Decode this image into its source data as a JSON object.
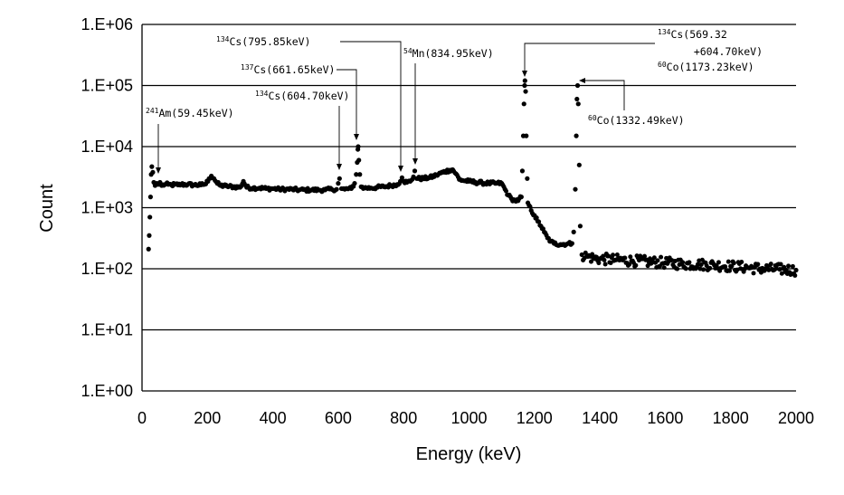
{
  "chart_data": {
    "type": "scatter",
    "title": "",
    "xlabel": "Energy (keV)",
    "ylabel": "Count",
    "xlim": [
      0,
      2000
    ],
    "ylim": [
      1,
      1000000
    ],
    "yscale": "log",
    "grid": "horizontal major gridlines",
    "legend": "none",
    "marker_color": "#000000",
    "x_ticks": [
      "0",
      "200",
      "400",
      "600",
      "800",
      "1000",
      "1200",
      "1400",
      "1600",
      "1800",
      "2000"
    ],
    "y_ticks": [
      "1.E+00",
      "1.E+01",
      "1.E+02",
      "1.E+03",
      "1.E+04",
      "1.E+05",
      "1.E+06"
    ],
    "series": [
      {
        "points": [
          [
            20,
            210
          ],
          [
            22,
            350
          ],
          [
            24,
            700
          ],
          [
            26,
            1500
          ],
          [
            28,
            3500
          ],
          [
            30,
            4700
          ],
          [
            33,
            3800
          ],
          [
            36,
            2600
          ],
          [
            40,
            2300
          ],
          [
            45,
            2500
          ],
          [
            50,
            2400
          ],
          [
            55,
            2600
          ],
          [
            60,
            2300
          ],
          [
            70,
            2400
          ],
          [
            80,
            2400
          ],
          [
            90,
            2350
          ],
          [
            100,
            2400
          ],
          [
            110,
            2350
          ],
          [
            120,
            2400
          ],
          [
            140,
            2400
          ],
          [
            160,
            2350
          ],
          [
            180,
            2350
          ],
          [
            195,
            2450
          ],
          [
            205,
            3000
          ],
          [
            212,
            3300
          ],
          [
            220,
            3000
          ],
          [
            230,
            2500
          ],
          [
            240,
            2300
          ],
          [
            260,
            2250
          ],
          [
            280,
            2200
          ],
          [
            300,
            2150
          ],
          [
            310,
            2700
          ],
          [
            320,
            2150
          ],
          [
            340,
            2100
          ],
          [
            360,
            2100
          ],
          [
            380,
            2050
          ],
          [
            400,
            2050
          ],
          [
            420,
            2000
          ],
          [
            440,
            2000
          ],
          [
            460,
            2000
          ],
          [
            480,
            1950
          ],
          [
            500,
            1950
          ],
          [
            520,
            1950
          ],
          [
            540,
            1950
          ],
          [
            560,
            1950
          ],
          [
            580,
            2000
          ],
          [
            595,
            2000
          ],
          [
            600,
            2500
          ],
          [
            604,
            3000
          ],
          [
            610,
            2050
          ],
          [
            620,
            2000
          ],
          [
            640,
            2050
          ],
          [
            650,
            2500
          ],
          [
            655,
            3500
          ],
          [
            658,
            5500
          ],
          [
            660,
            9000
          ],
          [
            661,
            10000
          ],
          [
            663,
            6000
          ],
          [
            666,
            3500
          ],
          [
            670,
            2200
          ],
          [
            680,
            2100
          ],
          [
            700,
            2100
          ],
          [
            720,
            2150
          ],
          [
            740,
            2200
          ],
          [
            760,
            2300
          ],
          [
            780,
            2400
          ],
          [
            790,
            2700
          ],
          [
            795,
            3100
          ],
          [
            800,
            2700
          ],
          [
            810,
            2600
          ],
          [
            820,
            2700
          ],
          [
            830,
            3200
          ],
          [
            834,
            4000
          ],
          [
            840,
            3000
          ],
          [
            860,
            3000
          ],
          [
            880,
            3100
          ],
          [
            900,
            3400
          ],
          [
            920,
            3800
          ],
          [
            940,
            4100
          ],
          [
            950,
            4200
          ],
          [
            960,
            3600
          ],
          [
            970,
            2900
          ],
          [
            980,
            2800
          ],
          [
            1000,
            2700
          ],
          [
            1020,
            2600
          ],
          [
            1040,
            2550
          ],
          [
            1060,
            2500
          ],
          [
            1080,
            2500
          ],
          [
            1100,
            2500
          ],
          [
            1110,
            2000
          ],
          [
            1120,
            1600
          ],
          [
            1130,
            1400
          ],
          [
            1140,
            1300
          ],
          [
            1150,
            1300
          ],
          [
            1160,
            1500
          ],
          [
            1163,
            4000
          ],
          [
            1166,
            15000
          ],
          [
            1168,
            50000
          ],
          [
            1170,
            100000
          ],
          [
            1171,
            120000
          ],
          [
            1173,
            80000
          ],
          [
            1175,
            15000
          ],
          [
            1178,
            3000
          ],
          [
            1180,
            1200
          ],
          [
            1190,
            900
          ],
          [
            1200,
            750
          ],
          [
            1210,
            600
          ],
          [
            1220,
            500
          ],
          [
            1230,
            400
          ],
          [
            1240,
            320
          ],
          [
            1250,
            280
          ],
          [
            1260,
            260
          ],
          [
            1280,
            250
          ],
          [
            1300,
            255
          ],
          [
            1315,
            260
          ],
          [
            1320,
            400
          ],
          [
            1325,
            2000
          ],
          [
            1328,
            15000
          ],
          [
            1330,
            60000
          ],
          [
            1332,
            100000
          ],
          [
            1334,
            50000
          ],
          [
            1337,
            5000
          ],
          [
            1340,
            500
          ],
          [
            1345,
            170
          ],
          [
            1360,
            160
          ],
          [
            1380,
            150
          ],
          [
            1400,
            145
          ],
          [
            1450,
            140
          ],
          [
            1500,
            135
          ],
          [
            1550,
            130
          ],
          [
            1600,
            125
          ],
          [
            1650,
            120
          ],
          [
            1700,
            118
          ],
          [
            1750,
            115
          ],
          [
            1800,
            110
          ],
          [
            1850,
            105
          ],
          [
            1900,
            100
          ],
          [
            1950,
            98
          ],
          [
            2000,
            95
          ]
        ]
      }
    ],
    "annotations": [
      {
        "sup": "241",
        "text": "Am(59.45keV)",
        "energy": 59.45
      },
      {
        "sup": "134",
        "text": "Cs(604.70keV)",
        "energy": 604.7
      },
      {
        "sup": "137",
        "text": "Cs(661.65keV)",
        "energy": 661.65
      },
      {
        "sup": "134",
        "text": "Cs(795.85keV)",
        "energy": 795.85
      },
      {
        "sup": "54",
        "text": "Mn(834.95keV)",
        "energy": 834.95
      },
      {
        "sup": "134",
        "text": "Cs(569.32",
        "line2": "+604.70keV)",
        "energy": 1174
      },
      {
        "sup": "60",
        "text": "Co(1173.23keV)",
        "energy": 1173.23
      },
      {
        "sup": "60",
        "text": "Co(1332.49keV)",
        "energy": 1332.49
      }
    ]
  }
}
